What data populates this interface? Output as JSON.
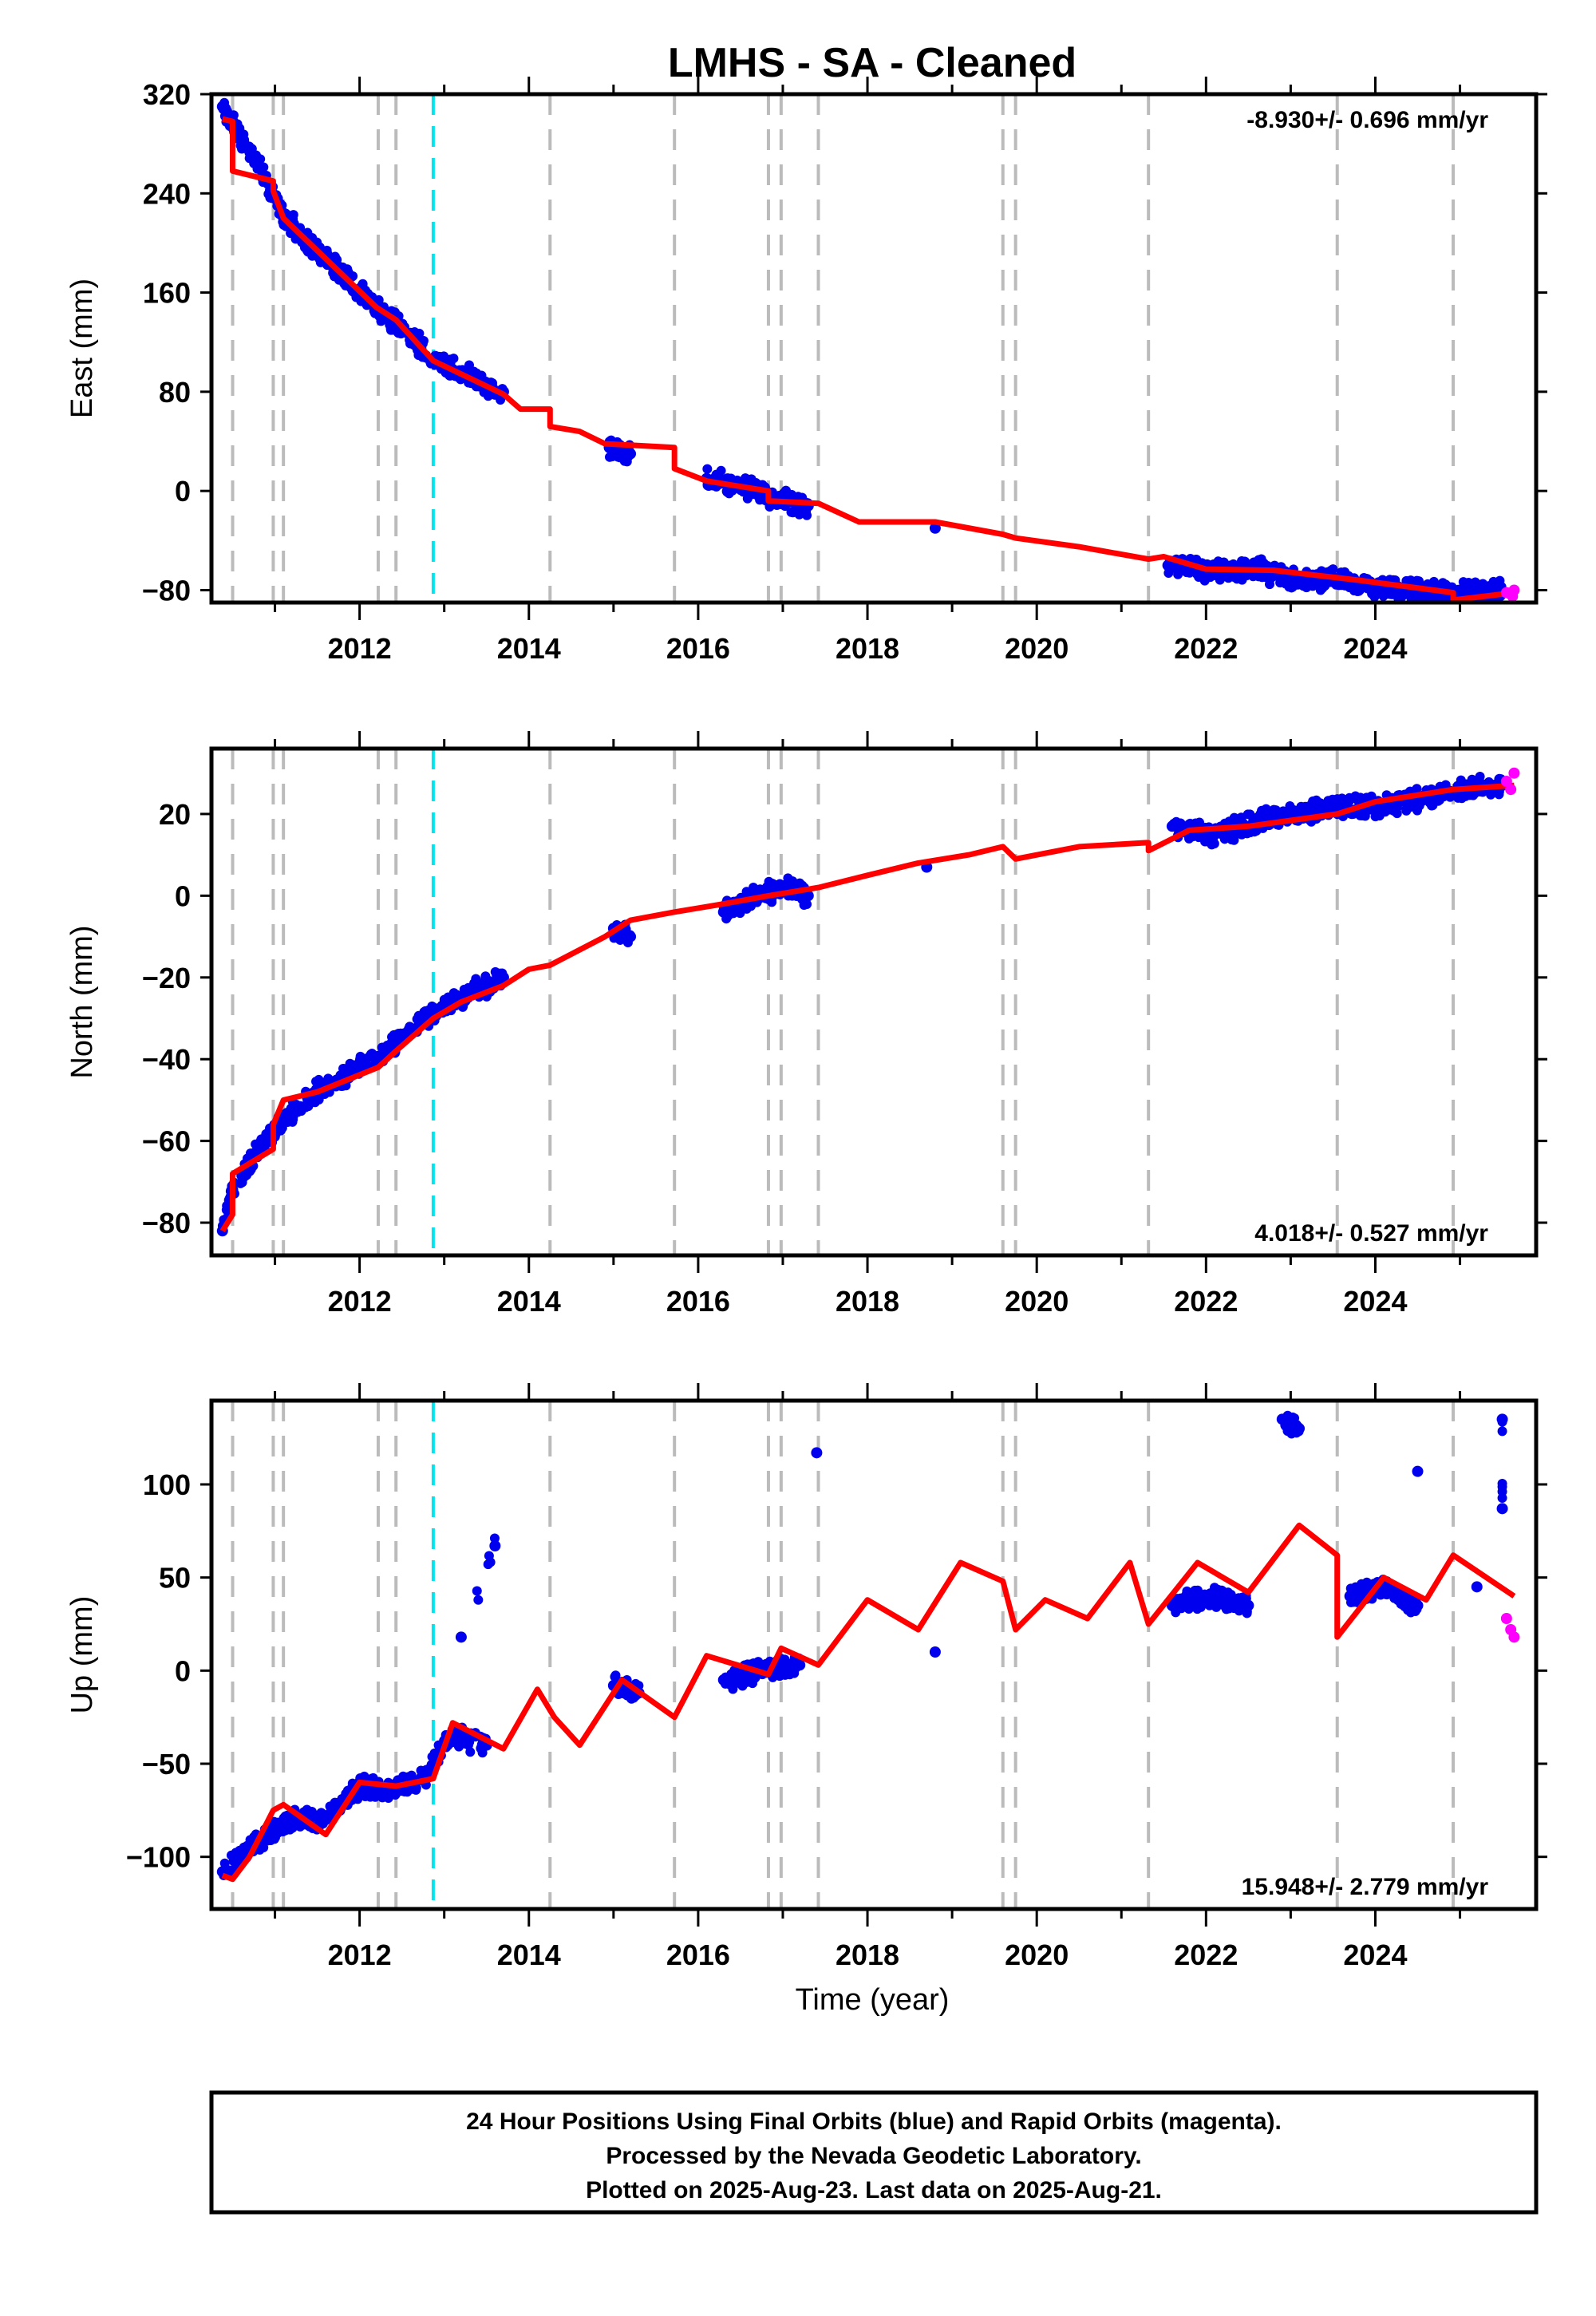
{
  "title": "LMHS  - SA - Cleaned",
  "xlabel": "Time (year)",
  "footer": {
    "line1": "24 Hour Positions Using Final Orbits (blue) and Rapid Orbits (magenta).",
    "line2": "Processed by the Nevada Geodetic Laboratory.",
    "line3": "Plotted on 2025-Aug-23. Last data on 2025-Aug-21."
  },
  "colors": {
    "final_orbits": "#0000ee",
    "rapid_orbits": "#ff00ff",
    "model": "#ff0000",
    "event_lines": "#bbbbbb",
    "antenna_line": "#00e5ee"
  },
  "chart_data": [
    {
      "type": "scatter",
      "id": "east",
      "ylabel": "East (mm)",
      "rate_text": "-8.930+/- 0.696 mm/yr",
      "rate_position": "top-right",
      "xlim": [
        2010.25,
        2025.9
      ],
      "ylim": [
        -90,
        320
      ],
      "x_ticks": [
        "2012",
        "2014",
        "2016",
        "2018",
        "2020",
        "2022",
        "2024"
      ],
      "y_ticks": [
        "320",
        "240",
        "160",
        "80",
        "0",
        "-80"
      ],
      "event_lines": [
        2010.5,
        2010.98,
        2011.1,
        2012.22,
        2012.43,
        2014.25,
        2015.72,
        2016.83,
        2016.98,
        2017.42,
        2019.6,
        2019.75,
        2021.32,
        2023.55,
        2024.92
      ],
      "antenna_change": [
        2012.87
      ],
      "final_orbits": [
        [
          2010.38,
          310
        ],
        [
          2010.5,
          295
        ],
        [
          2010.7,
          275
        ],
        [
          2010.9,
          250
        ],
        [
          2011.1,
          222
        ],
        [
          2011.4,
          200
        ],
        [
          2011.8,
          175
        ],
        [
          2012.2,
          148
        ],
        [
          2012.6,
          125
        ],
        [
          2012.9,
          105
        ],
        [
          2013.3,
          92
        ],
        [
          2013.7,
          80
        ],
        [
          2014.95,
          35
        ],
        [
          2015.2,
          30
        ],
        [
          2016.1,
          10
        ],
        [
          2016.5,
          5
        ],
        [
          2016.9,
          -5
        ],
        [
          2017.3,
          -12
        ],
        [
          2018.8,
          -30
        ],
        [
          2021.55,
          -60
        ],
        [
          2022.1,
          -65
        ],
        [
          2022.6,
          -63
        ],
        [
          2023.1,
          -72
        ],
        [
          2023.5,
          -70
        ],
        [
          2024.0,
          -78
        ],
        [
          2024.5,
          -80
        ],
        [
          2025.0,
          -82
        ],
        [
          2025.5,
          -81
        ]
      ],
      "rapid_orbits": [
        [
          2025.55,
          -82
        ],
        [
          2025.62,
          -85
        ],
        [
          2025.64,
          -80
        ]
      ],
      "model": [
        [
          2010.38,
          300
        ],
        [
          2010.5,
          298
        ],
        [
          2010.5,
          258
        ],
        [
          2010.98,
          250
        ],
        [
          2010.98,
          242
        ],
        [
          2011.1,
          220
        ],
        [
          2012.2,
          148
        ],
        [
          2012.43,
          138
        ],
        [
          2012.87,
          105
        ],
        [
          2013.7,
          78
        ],
        [
          2013.9,
          66
        ],
        [
          2014.25,
          66
        ],
        [
          2014.25,
          52
        ],
        [
          2014.6,
          48
        ],
        [
          2014.9,
          38
        ],
        [
          2015.72,
          35
        ],
        [
          2015.72,
          18
        ],
        [
          2016.1,
          8
        ],
        [
          2016.83,
          0
        ],
        [
          2016.83,
          -8
        ],
        [
          2017.42,
          -10
        ],
        [
          2017.9,
          -25
        ],
        [
          2018.8,
          -25
        ],
        [
          2019.6,
          -35
        ],
        [
          2019.75,
          -38
        ],
        [
          2020.5,
          -45
        ],
        [
          2021.32,
          -55
        ],
        [
          2021.5,
          -53
        ],
        [
          2022.0,
          -63
        ],
        [
          2022.8,
          -64
        ],
        [
          2023.55,
          -70
        ],
        [
          2023.8,
          -72
        ],
        [
          2024.92,
          -82
        ],
        [
          2024.92,
          -88
        ],
        [
          2025.64,
          -82
        ]
      ]
    },
    {
      "type": "scatter",
      "id": "north",
      "ylabel": "North (mm)",
      "rate_text": "4.018+/- 0.527 mm/yr",
      "rate_position": "bottom-right",
      "xlim": [
        2010.25,
        2025.9
      ],
      "ylim": [
        -88,
        36
      ],
      "x_ticks": [
        "2012",
        "2014",
        "2016",
        "2018",
        "2020",
        "2022",
        "2024"
      ],
      "y_ticks": [
        "20",
        "0",
        "-20",
        "-40",
        "-60",
        "-80"
      ],
      "event_lines": [
        2010.5,
        2010.98,
        2011.1,
        2012.22,
        2012.43,
        2014.25,
        2015.72,
        2016.83,
        2016.98,
        2017.42,
        2019.6,
        2019.75,
        2021.32,
        2023.55,
        2024.92
      ],
      "antenna_change": [
        2012.87
      ],
      "final_orbits": [
        [
          2010.38,
          -82
        ],
        [
          2010.5,
          -72
        ],
        [
          2010.8,
          -62
        ],
        [
          2011.1,
          -55
        ],
        [
          2011.5,
          -48
        ],
        [
          2012.0,
          -42
        ],
        [
          2012.5,
          -35
        ],
        [
          2012.9,
          -28
        ],
        [
          2013.3,
          -24
        ],
        [
          2013.7,
          -20
        ],
        [
          2015.0,
          -8
        ],
        [
          2015.2,
          -10
        ],
        [
          2016.3,
          -4
        ],
        [
          2016.7,
          0
        ],
        [
          2017.0,
          2
        ],
        [
          2017.3,
          0
        ],
        [
          2018.7,
          7
        ],
        [
          2021.6,
          17
        ],
        [
          2022.1,
          15
        ],
        [
          2022.6,
          18
        ],
        [
          2023.1,
          20
        ],
        [
          2023.6,
          22
        ],
        [
          2024.1,
          22
        ],
        [
          2024.6,
          24
        ],
        [
          2025.1,
          26
        ],
        [
          2025.5,
          27
        ]
      ],
      "rapid_orbits": [
        [
          2025.55,
          28
        ],
        [
          2025.6,
          26
        ],
        [
          2025.64,
          30
        ]
      ],
      "model": [
        [
          2010.38,
          -82
        ],
        [
          2010.5,
          -78
        ],
        [
          2010.5,
          -68
        ],
        [
          2010.98,
          -62
        ],
        [
          2010.98,
          -56
        ],
        [
          2011.1,
          -50
        ],
        [
          2011.5,
          -48
        ],
        [
          2012.22,
          -42
        ],
        [
          2012.43,
          -38
        ],
        [
          2012.87,
          -30
        ],
        [
          2013.2,
          -26
        ],
        [
          2013.7,
          -22
        ],
        [
          2014.0,
          -18
        ],
        [
          2014.25,
          -17
        ],
        [
          2014.9,
          -10
        ],
        [
          2015.2,
          -6
        ],
        [
          2015.72,
          -4
        ],
        [
          2016.3,
          -2
        ],
        [
          2016.83,
          0
        ],
        [
          2017.42,
          2
        ],
        [
          2018.0,
          5
        ],
        [
          2018.6,
          8
        ],
        [
          2019.2,
          10
        ],
        [
          2019.6,
          12
        ],
        [
          2019.75,
          9
        ],
        [
          2020.5,
          12
        ],
        [
          2021.32,
          13
        ],
        [
          2021.32,
          11
        ],
        [
          2021.8,
          16
        ],
        [
          2022.5,
          17
        ],
        [
          2023.55,
          20
        ],
        [
          2024.0,
          23
        ],
        [
          2024.92,
          26
        ],
        [
          2025.64,
          27
        ]
      ]
    },
    {
      "type": "scatter",
      "id": "up",
      "ylabel": "Up (mm)",
      "rate_text": "15.948+/- 2.779 mm/yr",
      "rate_position": "bottom-right",
      "xlim": [
        2010.25,
        2025.9
      ],
      "ylim": [
        -128,
        145
      ],
      "x_ticks": [
        "2012",
        "2014",
        "2016",
        "2018",
        "2020",
        "2022",
        "2024"
      ],
      "y_ticks": [
        "100",
        "50",
        "0",
        "-50",
        "-100"
      ],
      "event_lines": [
        2010.5,
        2010.98,
        2011.1,
        2012.22,
        2012.43,
        2014.25,
        2015.72,
        2016.83,
        2016.98,
        2017.42,
        2019.6,
        2019.75,
        2021.32,
        2023.55,
        2024.92
      ],
      "antenna_change": [
        2012.87
      ],
      "final_orbits": [
        [
          2010.38,
          -108
        ],
        [
          2010.6,
          -100
        ],
        [
          2010.9,
          -88
        ],
        [
          2011.2,
          -80
        ],
        [
          2011.6,
          -80
        ],
        [
          2012.0,
          -62
        ],
        [
          2012.4,
          -65
        ],
        [
          2012.8,
          -55
        ],
        [
          2013.1,
          -35
        ],
        [
          2013.5,
          -40
        ],
        [
          2013.6,
          67
        ],
        [
          2013.2,
          18
        ],
        [
          2015.0,
          -8
        ],
        [
          2015.3,
          -12
        ],
        [
          2016.3,
          -5
        ],
        [
          2016.8,
          0
        ],
        [
          2017.2,
          3
        ],
        [
          2017.4,
          117
        ],
        [
          2018.8,
          10
        ],
        [
          2021.6,
          35
        ],
        [
          2022.1,
          40
        ],
        [
          2022.5,
          35
        ],
        [
          2022.9,
          135
        ],
        [
          2023.1,
          130
        ],
        [
          2023.7,
          40
        ],
        [
          2024.1,
          45
        ],
        [
          2024.5,
          35
        ],
        [
          2024.5,
          107
        ],
        [
          2025.2,
          45
        ],
        [
          2025.5,
          135
        ],
        [
          2025.5,
          87
        ]
      ],
      "rapid_orbits": [
        [
          2025.55,
          28
        ],
        [
          2025.6,
          22
        ],
        [
          2025.64,
          18
        ]
      ],
      "model": [
        [
          2010.38,
          -110
        ],
        [
          2010.5,
          -112
        ],
        [
          2010.7,
          -100
        ],
        [
          2010.98,
          -75
        ],
        [
          2011.1,
          -72
        ],
        [
          2011.6,
          -88
        ],
        [
          2012.0,
          -60
        ],
        [
          2012.43,
          -62
        ],
        [
          2012.87,
          -58
        ],
        [
          2013.1,
          -28
        ],
        [
          2013.7,
          -42
        ],
        [
          2014.1,
          -10
        ],
        [
          2014.3,
          -25
        ],
        [
          2014.6,
          -40
        ],
        [
          2015.1,
          -5
        ],
        [
          2015.72,
          -25
        ],
        [
          2016.1,
          8
        ],
        [
          2016.83,
          -2
        ],
        [
          2016.98,
          12
        ],
        [
          2017.42,
          3
        ],
        [
          2018.0,
          38
        ],
        [
          2018.6,
          22
        ],
        [
          2019.1,
          58
        ],
        [
          2019.6,
          48
        ],
        [
          2019.75,
          22
        ],
        [
          2020.1,
          38
        ],
        [
          2020.6,
          28
        ],
        [
          2021.1,
          58
        ],
        [
          2021.32,
          25
        ],
        [
          2021.9,
          58
        ],
        [
          2022.5,
          42
        ],
        [
          2023.1,
          78
        ],
        [
          2023.55,
          62
        ],
        [
          2023.55,
          18
        ],
        [
          2024.1,
          50
        ],
        [
          2024.6,
          38
        ],
        [
          2024.92,
          62
        ],
        [
          2025.64,
          40
        ]
      ]
    }
  ]
}
